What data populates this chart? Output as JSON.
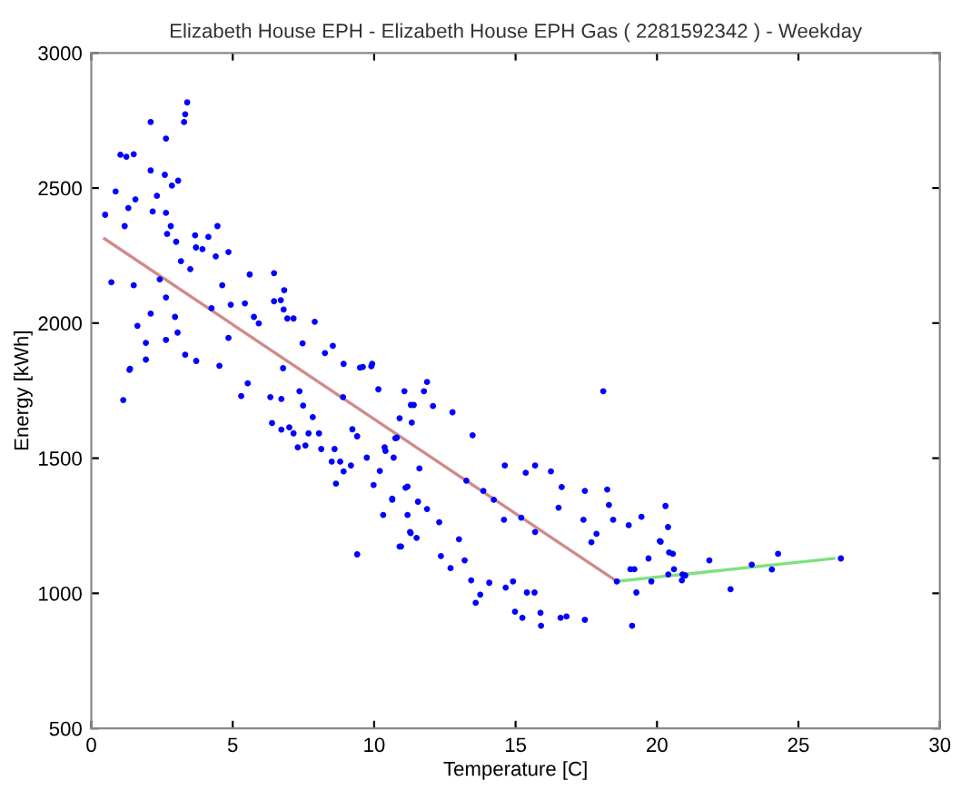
{
  "chart_data": {
    "type": "scatter",
    "title": "Elizabeth House EPH - Elizabeth House EPH Gas ( 2281592342 ) - Weekday",
    "xlabel": "Temperature [C]",
    "ylabel": "Energy [kWh]",
    "xlim": [
      0,
      30
    ],
    "xticks": [
      0,
      5,
      10,
      15,
      20,
      25,
      30
    ],
    "ylim": [
      500,
      3000
    ],
    "yticks": [
      500,
      1000,
      1500,
      2000,
      2500,
      3000
    ],
    "grid": false,
    "legend": false,
    "series": [
      {
        "marker": "circle",
        "color": "#0000ff",
        "x": [
          0.49,
          0.86,
          1.03,
          1.24,
          1.5,
          2.1,
          2.64,
          3.28,
          3.32,
          3.39,
          2.1,
          2.6,
          2.85,
          3.07,
          1.31,
          1.56,
          2.32,
          2.17,
          1.18,
          2.64,
          2.68,
          2.81,
          3.0,
          3.17,
          3.5,
          3.67,
          3.7,
          3.93,
          4.14,
          4.46,
          4.4,
          4.85,
          0.71,
          1.5,
          2.42,
          2.64,
          2.1,
          1.63,
          2.96,
          3.05,
          2.64,
          1.93,
          1.93,
          1.37,
          3.32,
          3.71,
          4.53,
          4.25,
          4.63,
          4.85,
          4.93,
          5.43,
          5.6,
          5.75,
          5.92,
          6.46,
          6.7,
          6.46,
          6.82,
          6.8,
          6.93,
          7.15,
          7.9,
          7.47,
          8.26,
          8.54,
          8.92,
          9.5,
          9.9,
          6.78,
          1.13,
          1.35,
          5.3,
          5.53,
          6.33,
          6.72,
          6.39,
          6.72,
          7.0,
          7.15,
          7.36,
          7.3,
          7.57,
          7.49,
          7.83,
          7.68,
          8.05,
          8.13,
          8.6,
          8.5,
          8.8,
          8.92,
          8.65,
          9.23,
          9.4,
          9.18,
          8.9,
          9.4,
          9.74,
          9.98,
          10.2,
          10.4,
          10.32,
          10.64,
          10.8,
          10.9,
          11.18,
          11.18,
          11.27,
          10.9,
          11.5,
          11.55,
          10.15,
          9.93,
          9.6,
          11.07,
          11.3,
          11.6,
          11.87,
          12.08,
          18.1,
          13.48,
          14.62,
          15.36,
          15.69,
          16.25,
          16.63,
          16.52,
          17.45,
          18.24,
          18.3,
          17.4,
          17.86,
          17.68,
          18.45,
          19.0,
          19.45,
          20.3,
          20.39,
          20.1,
          20.56,
          19.7,
          18.58,
          19.2,
          19.8,
          19.27,
          19.12,
          20.4,
          20.9,
          15.2,
          15.69,
          14.59,
          13.86,
          13.26,
          14.23,
          12.77,
          11.76,
          11.4,
          11.33,
          10.75,
          10.37,
          10.69,
          11.11,
          11.87,
          10.64,
          11.29,
          10.95,
          12.3,
          13.0,
          12.36,
          12.7,
          13.2,
          13.43,
          13.75,
          13.59,
          14.07,
          14.65,
          14.91,
          14.98,
          15.24,
          15.4,
          15.67,
          15.88,
          15.9,
          16.59,
          16.8,
          17.45,
          20.13,
          20.43,
          19.06,
          20.6,
          21.0,
          20.88,
          21.85,
          22.6,
          23.35,
          24.06,
          24.28,
          26.5
        ],
        "values": [
          2401,
          2487,
          2623,
          2616,
          2625,
          2744,
          2683,
          2744,
          2773,
          2817,
          2565,
          2549,
          2509,
          2527,
          2426,
          2458,
          2471,
          2413,
          2359,
          2408,
          2330,
          2359,
          2301,
          2229,
          2200,
          2325,
          2280,
          2274,
          2319,
          2359,
          2247,
          2263,
          2151,
          2140,
          2162,
          2095,
          2035,
          1990,
          2023,
          1965,
          1938,
          1927,
          1865,
          1831,
          1883,
          1860,
          1842,
          2055,
          2140,
          1945,
          2068,
          2073,
          2180,
          2023,
          1999,
          2081,
          2085,
          2185,
          2122,
          2050,
          2017,
          2017,
          2005,
          1925,
          1889,
          1916,
          1849,
          1835,
          1840,
          1833,
          1715,
          1827,
          1730,
          1777,
          1726,
          1719,
          1630,
          1606,
          1614,
          1592,
          1748,
          1540,
          1547,
          1695,
          1652,
          1592,
          1592,
          1534,
          1534,
          1487,
          1487,
          1451,
          1406,
          1607,
          1581,
          1473,
          1726,
          1144,
          1502,
          1401,
          1453,
          1527,
          1290,
          1350,
          1576,
          1648,
          1395,
          1290,
          1227,
          1173,
          1205,
          1339,
          1755,
          1849,
          1838,
          1748,
          1697,
          1462,
          1782,
          1693,
          1748,
          1585,
          1473,
          1446,
          1473,
          1451,
          1393,
          1317,
          1379,
          1384,
          1327,
          1272,
          1220,
          1189,
          1272,
          1252,
          1283,
          1323,
          1245,
          1193,
          1146,
          1129,
          1044,
          1089,
          1044,
          1003,
          880,
          1070,
          1070,
          1280,
          1227,
          1272,
          1379,
          1417,
          1346,
          1670,
          1748,
          1697,
          1632,
          1574,
          1540,
          1502,
          1391,
          1312,
          1346,
          1223,
          1173,
          1263,
          1200,
          1138,
          1093,
          1122,
          1048,
          995,
          965,
          1039,
          1021,
          1044,
          932,
          909,
          1003,
          1003,
          928,
          880,
          909,
          914,
          902,
          1191,
          1151,
          1089,
          1089,
          1066,
          1048,
          1122,
          1015,
          1106,
          1088,
          1146,
          1129
        ]
      },
      {
        "type": "line",
        "color": "#d08a8a",
        "x": [
          0.47,
          18.58
        ],
        "values": [
          2312,
          1044
        ]
      },
      {
        "type": "line",
        "color": "#80e080",
        "x": [
          18.58,
          26.25
        ],
        "values": [
          1044,
          1129
        ]
      }
    ]
  }
}
